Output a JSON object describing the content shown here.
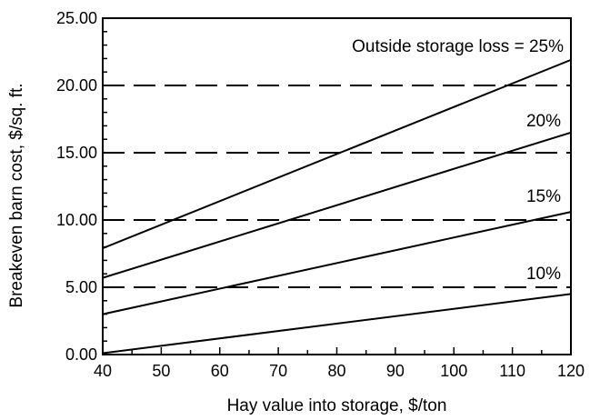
{
  "chart_data": {
    "type": "line",
    "title": "",
    "xlabel": "Hay value into storage, $/ton",
    "ylabel": "Breakeven barn cost, $/sq. ft.",
    "xlim": [
      40,
      120
    ],
    "ylim": [
      0,
      25
    ],
    "x_ticks": [
      "40",
      "50",
      "60",
      "70",
      "80",
      "90",
      "100",
      "110",
      "120"
    ],
    "y_ticks": [
      "0.00",
      "5.00",
      "10.00",
      "15.00",
      "20.00",
      "25.00"
    ],
    "reference_lines": [
      5,
      10,
      15,
      20
    ],
    "series": [
      {
        "name": "Outside storage loss = 25%",
        "x": [
          40,
          120
        ],
        "values": [
          7.9,
          21.9
        ]
      },
      {
        "name": "20%",
        "x": [
          40,
          120
        ],
        "values": [
          5.7,
          16.5
        ]
      },
      {
        "name": "15%",
        "x": [
          40,
          120
        ],
        "values": [
          3.0,
          10.6
        ]
      },
      {
        "name": "10%",
        "x": [
          40,
          120
        ],
        "values": [
          0.1,
          4.5
        ]
      }
    ]
  }
}
